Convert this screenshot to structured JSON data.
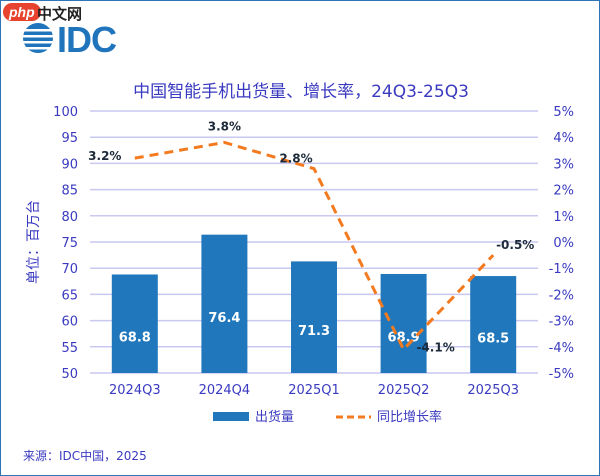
{
  "logo": {
    "brand": "IDC",
    "watermark": "php",
    "watermark_site": "中文网"
  },
  "title": "中国智能手机出货量、增长率，24Q3-25Q3",
  "source": "来源：IDC中国，2025",
  "chart_data": {
    "type": "bar+line",
    "title": "中国智能手机出货量、增长率，24Q3-25Q3",
    "ylabel": "单位：百万台",
    "categories": [
      "2024Q3",
      "2024Q4",
      "2025Q1",
      "2025Q2",
      "2025Q3"
    ],
    "ylim": [
      50,
      100
    ],
    "yticks": [
      "50",
      "55",
      "60",
      "65",
      "70",
      "75",
      "80",
      "85",
      "90",
      "95",
      "100"
    ],
    "y2lim": [
      -5,
      5
    ],
    "y2ticks": [
      "-5%",
      "-4%",
      "-3%",
      "-2%",
      "-1%",
      "0%",
      "1%",
      "2%",
      "3%",
      "4%",
      "5%"
    ],
    "grid": true,
    "legend": "bottom",
    "series": [
      {
        "name": "出货量",
        "type": "bar",
        "color": "#2077bb",
        "values": [
          68.8,
          76.4,
          71.3,
          68.9,
          68.5
        ],
        "labels": [
          "68.8",
          "76.4",
          "71.3",
          "68.9",
          "68.5"
        ]
      },
      {
        "name": "同比增长率",
        "type": "line",
        "style": "dashed",
        "color": "#f47a20",
        "axis": "right",
        "values": [
          3.2,
          3.8,
          2.8,
          -4.1,
          -0.5
        ],
        "labels": [
          "3.2%",
          "3.8%",
          "2.8%",
          "-4.1%",
          "-0.5%"
        ]
      }
    ]
  }
}
